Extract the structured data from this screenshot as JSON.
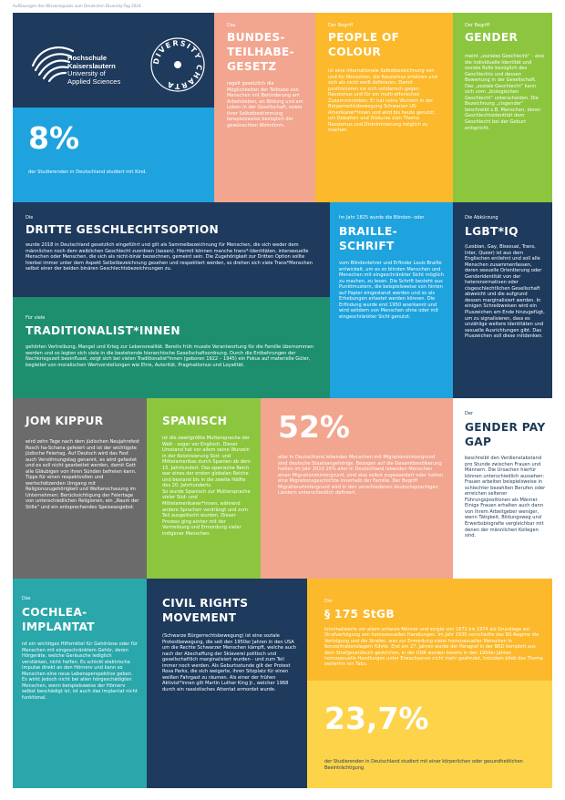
{
  "header_caption": "Auflösungen des Wissensquizes zum Deutschen Diversity-Tag 2024",
  "colors": {
    "navy": "#1e3a5c",
    "salmon": "#f2a58f",
    "yellow": "#fbb92b",
    "green": "#8cc63e",
    "blue": "#1ea3de",
    "teal": "#1e8f6e",
    "gray": "#6b6b6b",
    "cyan_teal": "#2aa7aa",
    "light_yellow": "#fdd34a"
  },
  "logo": {
    "name_line1": "Hochschule",
    "name_line2": "Kaiserslautern",
    "name_line3": "University of",
    "name_line4": "Applied Sciences",
    "badge_text": "DIVERSITY CHARTA"
  },
  "tiles": {
    "teilhabe": {
      "pre": "Das",
      "title": "BUNDES-\nTEILHABE-\nGESETZ",
      "body": "regelt gesetzlich die Möglichkeiten der Teilhabe von Menschen mit Behinderung am Arbeitsleben, an Bildung und am Leben in der Gesellschaft, sowie ihrer Selbstbestimmung beispielsweise bezüglich der gewünschten Wohnform."
    },
    "poc": {
      "pre": "Der Begriff",
      "title": "PEOPLE OF\nCOLOUR",
      "body": "ist eine internationale Selbstbezeichnung von und für Menschen, die Rassismus erfahren und sich als nicht weiß definieren. Damit positionieren sie sich solidarisch gegen Rassismus und für ein multi-ethnisches Zusammenleben. Er hat seine Wurzeln in der Bürgerrechtsbewegung Schwarzer US-Amerikaner*innen und wird bis heute genutzt, um Debatten und Diskurse zum Thema Rassismus und Diskriminierung möglich zu machen."
    },
    "gender": {
      "pre": "Der Begriff",
      "title": "GENDER",
      "body": "meint „soziales Geschlecht“ - also die individuelle Identität und soziale Rolle bezüglich des Geschlechts und dessen Bewertung in der Gesellschaft. Das „soziale Geschlecht“ kann sich vom „biologischen Geschlecht“ unterscheiden. Die Bezeichnung „cisgender“ beschreibt z.B. Menschen, deren Geschlechtsidentität dem Geschlecht bei der Geburt entspricht."
    },
    "kind": {
      "big": "8%",
      "caption": "der Studierenden in Deutschland studiert mit Kind."
    },
    "dritte": {
      "pre": "Die",
      "title": "DRITTE GESCHLECHTSOPTION",
      "body": "wurde 2018 in Deutschland gesetzlich eingeführt und gilt als Sammelbezeichnung für Menschen, die sich weder dem männlichen noch dem weiblichen Geschlecht zuordnen (lassen). Hiermit können manche trans*-Identitäten, intersexuelle Menschen oder Menschen, die sich als nicht-binär bezeichnen, gemeint sein. Die Zugehörigkeit zur Dritten Option sollte hierbei immer unter dem Aspekt Selbstbezeichnung gesehen und respektiert werden, so drehen sich viele Trans*Menschen selbst einer der beiden binären Geschlechtsbezeichnungen zu."
    },
    "braille": {
      "pre": "Im Jahr 1825 wurde die Blinden- oder",
      "title": "BRAILLE-\nSCHRIFT",
      "body": "vom Blindenlehrer und Erfinder Louis Braille entwickelt, um es so blinden Menschen und Menschen mit eingeschränkter Sicht möglich zu machen, zu lesen. Die Schrift besteht aus Punktmustern, die beispielsweise von hinten auf Papier eingestanzt werden und so als Erhebungen ertastet werden können. Die Erfindung wurde erst 1950 anerkannt und wird seitdem von Menschen ohne oder mit eingeschränkter Sicht genutzt."
    },
    "lgbtiq": {
      "pre": "Die Abkürzung",
      "title": "LGBT*IQ",
      "body": "(Lesbian, Gay, Bisexual, Trans, Inter, Queer) ist aus dem Englischen entlehnt und soll alle Menschen zusammenfassen, deren sexuelle Orientierung oder Genderidentität von der heteronormativen oder cisgeschlechtlichen Gesellschaft abweicht und die aufgrund dessen marginalisiert werden. In einigen Schreibweisen wird ein Pluszeichen am Ende hinzugefügt, um zu signalisieren, dass es unzählige weitere Identitäten und sexuelle Ausrichtungen gibt. Das Pluszeichen soll diese mitdenken."
    },
    "traditionalist": {
      "pre": "Für viele",
      "title": "TRADITIONALIST*INNEN",
      "body": "gehörten Vertreibung, Mangel und Krieg zur Lebensrealität. Bereits früh musste Verantwortung für die Familie übernommen werden und so legten sich viele in die bestehende hierarchische Gesellschaftsordnung. Durch die Entbehrungen der Nachkriegszeit beeinflusst, zeigt sich bei vielen Traditionalist*innen (geboren 1922 – 1945) ein Fokus auf materielle Güter, begleitet von moralischen Wertvorstellungen wie Ehre, Autorität, Pragmatismus und Loyalität."
    },
    "jomkippur": {
      "title": "JOM KIPPUR",
      "body": "wird zehn Tage nach dem jüdischen Neujahrsfest Rosch ha-Schana gefeiert und ist der wichtigste jüdische Feiertag. Auf Deutsch wird das Fest auch Versöhnungstag genannt, es wird gefastet und es soll nicht gearbeitet werden, damit Gott alle Gläubigen von ihren Sünden befreien kann.\nTipps für einen respektvollen und wertschätzenden Umgang mit Religionszugehörigkeit und Weltanschauung im Unternehmen: Berücksichtigung der Feiertage von unterschiedlichen Religionen, ein „Raum der Stille“ und ein entsprechendes Speiseangebot."
    },
    "spanisch": {
      "title": "SPANISCH",
      "body": "ist die zweitgrößte Muttersprache der Welt - sogar vor Englisch. Dieser Umstand hat vor allem seine Wurzeln in der Kolonisierung Süd- und Mittelamerikas durch Spanien ab dem 15. Jahrhundert. Das spanische Reich war eines der ersten globalen Reiche und bestand bis in die zweite Hälfte des 20. Jahrhunderts.\nSo wurde Spanisch zur Muttersprache vieler Süd- und Mittelamerikaner*innen, während andere Sprachen verdrängt und zum Teil ausgelöscht wurden. Dieser Prozess ging einher mit der Vertreibung und Ermordung vieler indigener Menschen."
    },
    "migration": {
      "big": "52%",
      "body": "aller in Deutschland lebenden Menschen mit Migrationshintergrund sind deutsche Staatsangehörige. Bezogen auf die Gesamtbevölkerung hatten im Jahr 2019 26% aller in Deutschland lebenden Menschen einen Migrationshintergrund, sind also selbst zugewandert oder hatten eine Migrationsgeschichte innerhalb der Familie. Der Begriff Migrationshintergrund wird in den verschiedenen deutschsprachigen Ländern unterschiedlich definiert."
    },
    "genderpay": {
      "pre": "Der",
      "title": "GENDER PAY\nGAP",
      "body": "beschreibt den Verdienstabstand pro Stunde zwischen Frauen und Männern. Die Ursachen hierfür können unterschiedlich aussehen: Frauen arbeiten beispielsweise in schlechter bezahlten Berufen oder erreichen seltener Führungspositionen als Männer. Einige Frauen erhalten auch dann von ihrem Arbeitgeber weniger, wenn Tätigkeit, Bildungsweg und Erwerbsbiografie vergleichbar mit denen der männlichen Kollegen sind."
    },
    "cochlea": {
      "pre": "Das",
      "title": "COCHLEA-\nIMPLANTAT",
      "body": "ist ein wichtiges Hilfsmittel für Gehörlose oder für Menschen mit eingeschränktem Gehör, deren Hörgeräte, welche Geräusche lediglich verstärken, nicht helfen. Es schickt elektrische Impulse direkt an den Hörnerv und kann so Menschen eine neue Lebensperspektive geben. Es wirkt jedoch nicht bei allen hörgeschädigten Menschen, wenn beispielsweise der Hörnerv selbst beschädigt ist, ist auch das Implantat nicht funktional."
    },
    "civilrights": {
      "title": "CIVIL RIGHTS\nMOVEMENT",
      "body": "(Schwarze Bürgerrechtsbewegung) ist eine soziale Protestbewegung, die seit den 1950er Jahren in den USA um die Rechte Schwarzer Menschen kämpft, welche auch nach der Abschaffung der Sklaverei politisch und gesellschaftlich marginalisiert wurden - und zum Teil immer noch werden. Als Geburtsstunde gilt der Protest Rosa Parks, die sich weigerte, ihren Sitzplatz für einen weißen Fahrgast zu räumen. Als einer der frühen Aktivist*innen gilt Martin Luther King Jr., welcher 1968 durch ein rassistisches Attentat ermordet wurde."
    },
    "stgb": {
      "pre": "Der",
      "title": "§ 175 StGB",
      "body": "kriminalisierte vor allem schwule Männer und sorgte von 1872 bis 1974 als Grundlage zur Strafverfolgung von homosexuellen Handlungen. Im Jahr 1935 verschärfte das NS-Regime die Verfolgung und die Strafen, was zur Ermordung vieler homosexueller Menschen in Konzentrationslagern führte. Erst am 27. Jahren wurde der Paragraf in der BRD komplett aus dem Strafgesetzbuch gestrichen, in der DDR wurden bereits in den 1950er Jahren homosexuelle Handlungen unter Erwachsenen nicht mehr geahndet, trotzdem blieb das Thema weiterhin ein Tabu."
    },
    "beeintraechtigung": {
      "big": "23,7%",
      "caption": "der Studierenden in Deutschland studiert mit einer körperlichen oder gesundheitlichen Beeinträchtigung"
    }
  }
}
